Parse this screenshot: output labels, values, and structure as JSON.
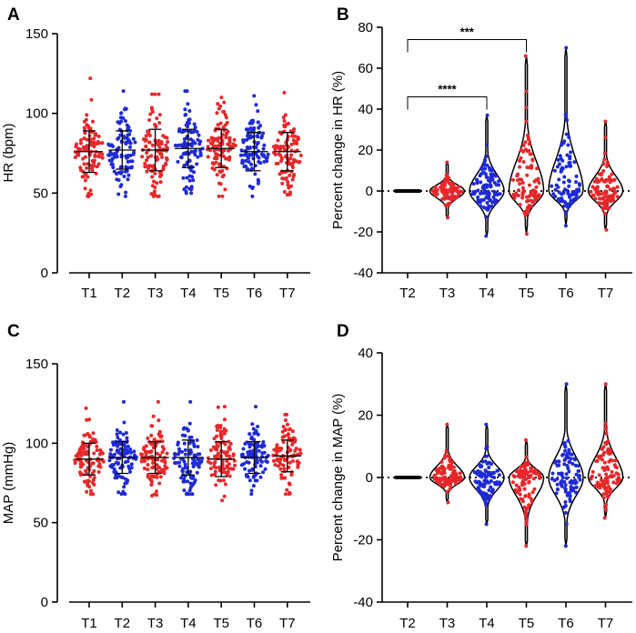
{
  "colors": {
    "red": "#e8272a",
    "blue": "#1f2ad6",
    "black": "#000000"
  },
  "chart_data": [
    {
      "panel": "A",
      "type": "scatter",
      "subtype": "dot-plot with mean and SD bars",
      "categories": [
        "T1",
        "T2",
        "T3",
        "T4",
        "T5",
        "T6",
        "T7"
      ],
      "ylabel": "HR (bpm)",
      "xlabel": "",
      "ylim": [
        0,
        150
      ],
      "yticks": [
        "0",
        "50",
        "100",
        "150"
      ],
      "point_colors": [
        "red",
        "blue",
        "red",
        "blue",
        "red",
        "blue",
        "red"
      ],
      "series": [
        {
          "name": "T1",
          "mean": 76,
          "sd": 13,
          "min": 48,
          "max": 122,
          "n": 100
        },
        {
          "name": "T2",
          "mean": 77,
          "sd": 12,
          "min": 48,
          "max": 114,
          "n": 100
        },
        {
          "name": "T3",
          "mean": 77,
          "sd": 13,
          "min": 48,
          "max": 112,
          "n": 100
        },
        {
          "name": "T4",
          "mean": 78,
          "sd": 12,
          "min": 50,
          "max": 114,
          "n": 100
        },
        {
          "name": "T5",
          "mean": 78,
          "sd": 12,
          "min": 48,
          "max": 110,
          "n": 100
        },
        {
          "name": "T6",
          "mean": 76,
          "sd": 12,
          "min": 48,
          "max": 111,
          "n": 100
        },
        {
          "name": "T7",
          "mean": 76,
          "sd": 12,
          "min": 49,
          "max": 113,
          "n": 100
        }
      ]
    },
    {
      "panel": "B",
      "type": "scatter",
      "subtype": "violin plot with individual points",
      "categories": [
        "T2",
        "T3",
        "T4",
        "T5",
        "T6",
        "T7"
      ],
      "ylabel": "Percent change in HR (%)",
      "xlabel": "",
      "ylim": [
        -40,
        80
      ],
      "yticks": [
        "-40",
        "-20",
        "0",
        "20",
        "40",
        "60",
        "80"
      ],
      "reference_line": 0,
      "point_colors": [
        "black",
        "red",
        "blue",
        "red",
        "blue",
        "red"
      ],
      "series": [
        {
          "name": "T2",
          "min": 0,
          "max": 0,
          "n": 30
        },
        {
          "name": "T3",
          "min": -13,
          "max": 14,
          "n": 100
        },
        {
          "name": "T4",
          "min": -22,
          "max": 37,
          "n": 100
        },
        {
          "name": "T5",
          "min": -21,
          "max": 66,
          "n": 100
        },
        {
          "name": "T6",
          "min": -17,
          "max": 70,
          "n": 100
        },
        {
          "name": "T7",
          "min": -19,
          "max": 34,
          "n": 100
        }
      ],
      "annotations": [
        {
          "from": "T2",
          "to": "T4",
          "text": "****",
          "y": 46
        },
        {
          "from": "T2",
          "to": "T5",
          "text": "***",
          "y": 74
        }
      ]
    },
    {
      "panel": "C",
      "type": "scatter",
      "subtype": "dot-plot with mean and SD bars",
      "categories": [
        "T1",
        "T2",
        "T3",
        "T4",
        "T5",
        "T6",
        "T7"
      ],
      "ylabel": "MAP (mmHg)",
      "xlabel": "",
      "ylim": [
        0,
        150
      ],
      "yticks": [
        "0",
        "50",
        "100",
        "150"
      ],
      "point_colors": [
        "red",
        "blue",
        "red",
        "blue",
        "red",
        "blue",
        "red"
      ],
      "series": [
        {
          "name": "T1",
          "mean": 90,
          "sd": 10,
          "min": 68,
          "max": 122,
          "n": 100
        },
        {
          "name": "T2",
          "mean": 91,
          "sd": 10,
          "min": 68,
          "max": 126,
          "n": 100
        },
        {
          "name": "T3",
          "mean": 91,
          "sd": 10,
          "min": 67,
          "max": 126,
          "n": 100
        },
        {
          "name": "T4",
          "mean": 91,
          "sd": 11,
          "min": 68,
          "max": 126,
          "n": 100
        },
        {
          "name": "T5",
          "mean": 90,
          "sd": 11,
          "min": 64,
          "max": 123,
          "n": 100
        },
        {
          "name": "T6",
          "mean": 91,
          "sd": 10,
          "min": 68,
          "max": 123,
          "n": 100
        },
        {
          "name": "T7",
          "mean": 92,
          "sd": 10,
          "min": 68,
          "max": 118,
          "n": 100
        }
      ]
    },
    {
      "panel": "D",
      "type": "scatter",
      "subtype": "violin plot with individual points",
      "categories": [
        "T2",
        "T3",
        "T4",
        "T5",
        "T6",
        "T7"
      ],
      "ylabel": "Percent change in MAP (%)",
      "xlabel": "",
      "ylim": [
        -40,
        40
      ],
      "yticks": [
        "-40",
        "-20",
        "0",
        "20",
        "40"
      ],
      "reference_line": 0,
      "point_colors": [
        "black",
        "red",
        "blue",
        "red",
        "blue",
        "red"
      ],
      "series": [
        {
          "name": "T2",
          "min": 0,
          "max": 0,
          "n": 30
        },
        {
          "name": "T3",
          "min": -8,
          "max": 17,
          "n": 100
        },
        {
          "name": "T4",
          "min": -15,
          "max": 17,
          "n": 100
        },
        {
          "name": "T5",
          "min": -22,
          "max": 12,
          "n": 100
        },
        {
          "name": "T6",
          "min": -22,
          "max": 30,
          "n": 100
        },
        {
          "name": "T7",
          "min": -13,
          "max": 30,
          "n": 100
        }
      ],
      "annotations": []
    }
  ]
}
